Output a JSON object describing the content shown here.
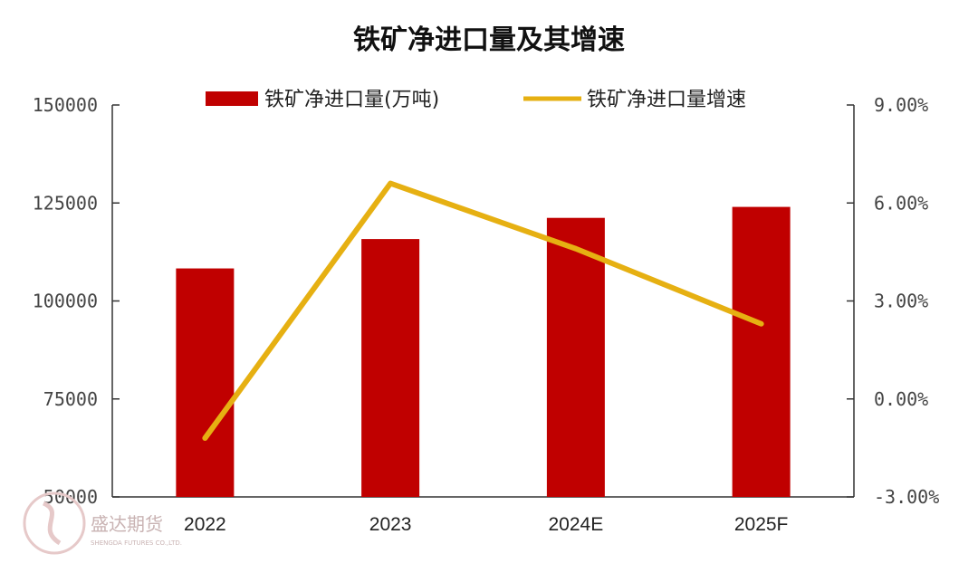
{
  "chart_data": {
    "type": "bar",
    "title": "铁矿净进口量及其增速",
    "categories": [
      "2022",
      "2023",
      "2024E",
      "2025F"
    ],
    "series": [
      {
        "name": "铁矿净进口量(万吨)",
        "type": "bar",
        "axis": "left",
        "values": [
          108300,
          115800,
          121200,
          124000
        ]
      },
      {
        "name": "铁矿净进口量增速",
        "type": "line",
        "axis": "right",
        "values": [
          -1.2,
          6.6,
          4.6,
          2.3
        ]
      }
    ],
    "y_left": {
      "min": 50000,
      "max": 150000,
      "ticks": [
        "150000",
        "125000",
        "100000",
        "75000",
        "50000"
      ]
    },
    "y_right": {
      "min": -3,
      "max": 9,
      "ticks": [
        "9.00%",
        "6.00%",
        "3.00%",
        "0.00%",
        "-3.00%"
      ]
    },
    "legend": "top",
    "grid": false
  },
  "colors": {
    "bar": "#c00000",
    "line": "#e6b012",
    "axis": "#333333"
  },
  "watermark": {
    "name": "盛达期货",
    "sub": "SHENGDA FUTURES CO.,LTD."
  }
}
